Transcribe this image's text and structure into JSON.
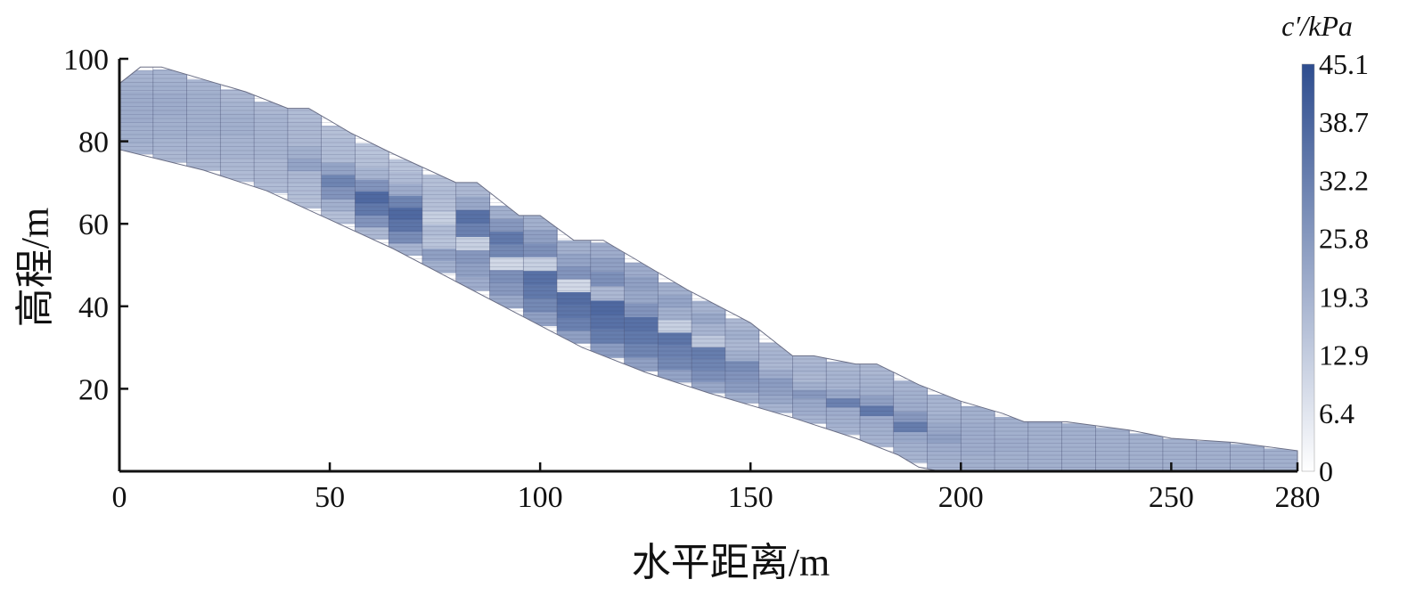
{
  "chart_data": {
    "type": "heatmap",
    "xlabel": "水平距离/m",
    "ylabel": "高程/m",
    "colorbar_title": "c′/kPa",
    "xlim": [
      0,
      280
    ],
    "ylim": [
      0,
      100
    ],
    "x_ticks": [
      0,
      50,
      100,
      150,
      200,
      250,
      280
    ],
    "y_ticks": [
      20,
      40,
      60,
      80,
      100
    ],
    "colorbar_ticks": [
      0,
      6.4,
      12.9,
      19.3,
      25.8,
      32.2,
      38.7,
      45.1
    ],
    "colorbar_range": [
      0,
      45.1
    ],
    "color_low": "#ffffff",
    "color_high": "#2e4d8f",
    "grid": false,
    "ground_surface": [
      [
        0,
        94
      ],
      [
        5,
        98
      ],
      [
        10,
        98
      ],
      [
        20,
        95
      ],
      [
        30,
        92
      ],
      [
        40,
        88
      ],
      [
        45,
        88
      ],
      [
        55,
        82
      ],
      [
        65,
        77
      ],
      [
        80,
        70
      ],
      [
        85,
        70
      ],
      [
        95,
        62
      ],
      [
        100,
        62
      ],
      [
        108,
        56
      ],
      [
        115,
        56
      ],
      [
        125,
        50
      ],
      [
        135,
        44
      ],
      [
        150,
        36
      ],
      [
        160,
        28
      ],
      [
        165,
        28
      ],
      [
        175,
        26
      ],
      [
        180,
        26
      ],
      [
        190,
        21
      ],
      [
        200,
        17
      ],
      [
        210,
        14
      ],
      [
        215,
        12
      ],
      [
        225,
        12
      ],
      [
        240,
        10
      ],
      [
        250,
        8
      ],
      [
        265,
        7
      ],
      [
        280,
        5
      ]
    ],
    "slip_surface": [
      [
        0,
        78
      ],
      [
        20,
        73
      ],
      [
        35,
        68
      ],
      [
        50,
        61
      ],
      [
        65,
        54
      ],
      [
        80,
        46
      ],
      [
        95,
        38
      ],
      [
        110,
        30
      ],
      [
        125,
        24
      ],
      [
        140,
        19
      ],
      [
        160,
        13
      ],
      [
        175,
        8
      ],
      [
        185,
        4
      ],
      [
        190,
        1
      ],
      [
        195,
        0
      ],
      [
        280,
        0
      ]
    ],
    "columns": [
      {
        "x0": 0,
        "x1": 8,
        "v": [
          19,
          20,
          20,
          21,
          21,
          21,
          20,
          19
        ]
      },
      {
        "x0": 8,
        "x1": 16,
        "v": [
          18,
          19,
          20,
          20,
          21,
          21,
          20,
          19
        ]
      },
      {
        "x0": 16,
        "x1": 24,
        "v": [
          18,
          19,
          19,
          20,
          20,
          20,
          20,
          19
        ]
      },
      {
        "x0": 24,
        "x1": 32,
        "v": [
          17,
          18,
          19,
          19,
          20,
          20,
          19,
          18
        ]
      },
      {
        "x0": 32,
        "x1": 40,
        "v": [
          17,
          18,
          18,
          19,
          19,
          19,
          19,
          18
        ]
      },
      {
        "x0": 40,
        "x1": 48,
        "v": [
          16,
          17,
          18,
          23,
          20,
          18,
          18,
          17
        ]
      },
      {
        "x0": 48,
        "x1": 56,
        "v": [
          16,
          20,
          27,
          31,
          23,
          17,
          17,
          16
        ]
      },
      {
        "x0": 56,
        "x1": 64,
        "v": [
          18,
          27,
          34,
          38,
          27,
          19,
          16,
          15
        ]
      },
      {
        "x0": 64,
        "x1": 72,
        "v": [
          19,
          29,
          35,
          38,
          31,
          21,
          17,
          15
        ]
      },
      {
        "x0": 72,
        "x1": 80,
        "v": [
          20,
          24,
          15,
          17,
          12,
          16,
          17,
          16
        ]
      },
      {
        "x0": 80,
        "x1": 88,
        "v": [
          21,
          24,
          26,
          12,
          32,
          36,
          22,
          18
        ]
      },
      {
        "x0": 88,
        "x1": 96,
        "v": [
          22,
          26,
          28,
          10,
          30,
          34,
          26,
          20
        ]
      },
      {
        "x0": 96,
        "x1": 104,
        "v": [
          24,
          30,
          34,
          36,
          12,
          28,
          24,
          20
        ]
      },
      {
        "x0": 104,
        "x1": 112,
        "v": [
          24,
          32,
          35,
          37,
          10,
          27,
          23,
          20
        ]
      },
      {
        "x0": 112,
        "x1": 120,
        "v": [
          25,
          33,
          36,
          38,
          18,
          28,
          24,
          21
        ]
      },
      {
        "x0": 120,
        "x1": 128,
        "v": [
          24,
          31,
          34,
          36,
          27,
          22,
          24,
          21
        ]
      },
      {
        "x0": 128,
        "x1": 136,
        "v": [
          23,
          30,
          32,
          35,
          12,
          20,
          23,
          20
        ]
      },
      {
        "x0": 136,
        "x1": 144,
        "v": [
          22,
          28,
          31,
          33,
          14,
          19,
          22,
          19
        ]
      },
      {
        "x0": 144,
        "x1": 152,
        "v": [
          20,
          25,
          27,
          29,
          20,
          18,
          20,
          18
        ]
      },
      {
        "x0": 152,
        "x1": 160,
        "v": [
          19,
          22,
          24,
          25,
          21,
          18,
          19,
          18
        ]
      },
      {
        "x0": 160,
        "x1": 168,
        "v": [
          19,
          21,
          22,
          26,
          20,
          18,
          19,
          18
        ]
      },
      {
        "x0": 168,
        "x1": 176,
        "v": [
          19,
          20,
          21,
          32,
          22,
          19,
          19,
          18
        ]
      },
      {
        "x0": 176,
        "x1": 184,
        "v": [
          19,
          20,
          21,
          34,
          24,
          20,
          19,
          18
        ]
      },
      {
        "x0": 184,
        "x1": 192,
        "v": [
          19,
          20,
          22,
          33,
          26,
          21,
          20,
          19
        ]
      },
      {
        "x0": 192,
        "x1": 200,
        "v": [
          19,
          20,
          21,
          24,
          22,
          20,
          19,
          19
        ]
      },
      {
        "x0": 200,
        "x1": 208,
        "v": [
          20,
          20,
          21,
          21,
          21,
          21,
          20,
          20
        ]
      },
      {
        "x0": 208,
        "x1": 216,
        "v": [
          20,
          20,
          20,
          21,
          21,
          20,
          20,
          20
        ]
      },
      {
        "x0": 216,
        "x1": 224,
        "v": [
          20,
          20,
          20,
          20,
          20,
          20,
          20,
          20
        ]
      },
      {
        "x0": 224,
        "x1": 232,
        "v": [
          20,
          20,
          20,
          20,
          20,
          20,
          20,
          20
        ]
      },
      {
        "x0": 232,
        "x1": 240,
        "v": [
          20,
          20,
          20,
          20,
          20,
          20,
          20,
          20
        ]
      },
      {
        "x0": 240,
        "x1": 248,
        "v": [
          20,
          20,
          20,
          20,
          20,
          20,
          20,
          20
        ]
      },
      {
        "x0": 248,
        "x1": 256,
        "v": [
          20,
          20,
          20,
          20,
          20,
          20,
          20,
          20
        ]
      },
      {
        "x0": 256,
        "x1": 264,
        "v": [
          20,
          20,
          20,
          20,
          20,
          20,
          20,
          20
        ]
      },
      {
        "x0": 264,
        "x1": 272,
        "v": [
          20,
          20,
          20,
          20,
          20,
          20,
          20,
          20
        ]
      },
      {
        "x0": 272,
        "x1": 280,
        "v": [
          20,
          20,
          20,
          20,
          20,
          20,
          20,
          20
        ]
      }
    ]
  }
}
